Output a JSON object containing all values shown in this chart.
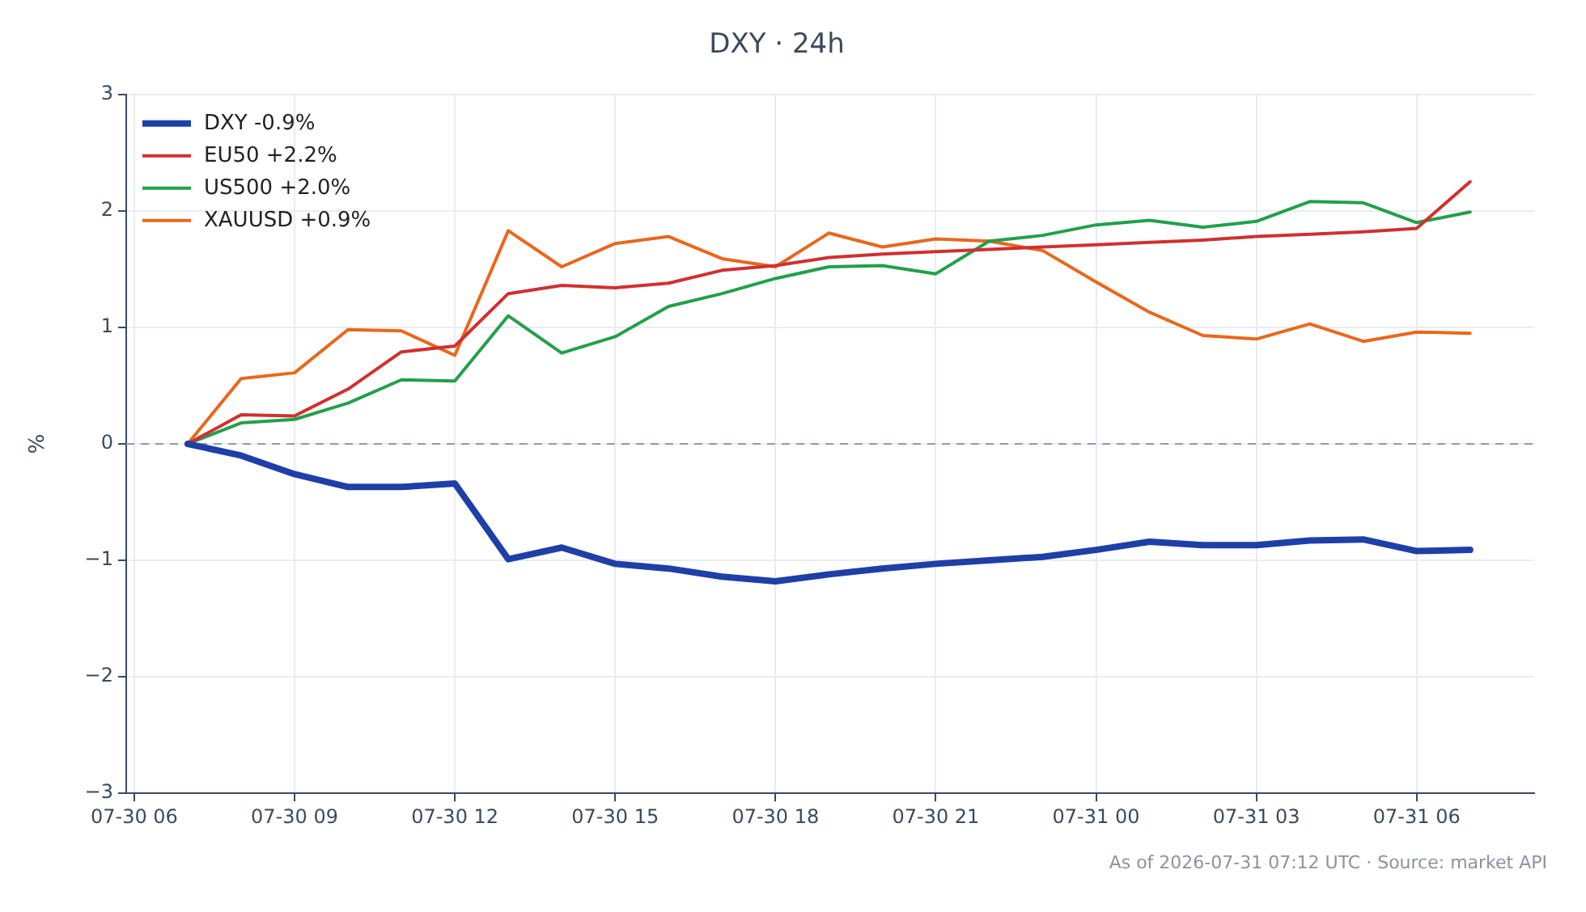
{
  "chart_data": {
    "type": "line",
    "title": "DXY · 24h",
    "ylabel": "%",
    "x": [
      "2026-07-30T07:00",
      "2026-07-30T08:00",
      "2026-07-30T09:00",
      "2026-07-30T10:00",
      "2026-07-30T11:00",
      "2026-07-30T12:00",
      "2026-07-30T13:00",
      "2026-07-30T14:00",
      "2026-07-30T15:00",
      "2026-07-30T16:00",
      "2026-07-30T17:00",
      "2026-07-30T18:00",
      "2026-07-30T19:00",
      "2026-07-30T20:00",
      "2026-07-30T21:00",
      "2026-07-30T22:00",
      "2026-07-30T23:00",
      "2026-07-31T00:00",
      "2026-07-31T01:00",
      "2026-07-31T02:00",
      "2026-07-31T03:00",
      "2026-07-31T04:00",
      "2026-07-31T05:00",
      "2026-07-31T06:00",
      "2026-07-31T07:00"
    ],
    "xlim": [
      "2026-07-30T05:51",
      "2026-07-31T08:12"
    ],
    "xticks": [
      {
        "value": "2026-07-30T06:00",
        "label": "07-30 06"
      },
      {
        "value": "2026-07-30T09:00",
        "label": "07-30 09"
      },
      {
        "value": "2026-07-30T12:00",
        "label": "07-30 12"
      },
      {
        "value": "2026-07-30T15:00",
        "label": "07-30 15"
      },
      {
        "value": "2026-07-30T18:00",
        "label": "07-30 18"
      },
      {
        "value": "2026-07-30T21:00",
        "label": "07-30 21"
      },
      {
        "value": "2026-07-31T00:00",
        "label": "07-31 00"
      },
      {
        "value": "2026-07-31T03:00",
        "label": "07-31 03"
      },
      {
        "value": "2026-07-31T06:00",
        "label": "07-31 06"
      }
    ],
    "ylim": [
      -3,
      3
    ],
    "yticks": [
      {
        "value": -3,
        "label": "−3"
      },
      {
        "value": -2,
        "label": "−2"
      },
      {
        "value": -1,
        "label": "−1"
      },
      0,
      1,
      2,
      3
    ],
    "series": [
      {
        "name": "DXY -0.9%",
        "color": "#1f3fa8",
        "values": [
          0,
          -0.1,
          -0.26,
          -0.37,
          -0.37,
          -0.34,
          -0.99,
          -0.89,
          -1.03,
          -1.07,
          -1.14,
          -1.18,
          -1.12,
          -1.07,
          -1.03,
          -1.0,
          -0.97,
          -0.91,
          -0.84,
          -0.87,
          -0.87,
          -0.83,
          -0.82,
          -0.92,
          -0.91
        ]
      },
      {
        "name": "EU50 +2.2%",
        "color": "#d03030",
        "values": [
          0,
          0.25,
          0.24,
          0.47,
          0.79,
          0.84,
          1.29,
          1.36,
          1.34,
          1.38,
          1.49,
          1.53,
          1.6,
          1.63,
          1.65,
          1.67,
          1.69,
          1.71,
          1.73,
          1.75,
          1.78,
          1.8,
          1.82,
          1.85,
          2.25
        ]
      },
      {
        "name": "US500 +2.0%",
        "color": "#22a04a",
        "values": [
          0,
          0.18,
          0.21,
          0.35,
          0.55,
          0.54,
          1.1,
          0.78,
          0.92,
          1.18,
          1.29,
          1.42,
          1.52,
          1.53,
          1.46,
          1.74,
          1.79,
          1.88,
          1.92,
          1.86,
          1.91,
          2.08,
          2.07,
          1.9,
          1.99
        ]
      },
      {
        "name": "XAUUSD +0.9%",
        "color": "#e8681c",
        "values": [
          0,
          0.56,
          0.61,
          0.98,
          0.97,
          0.76,
          1.83,
          1.52,
          1.72,
          1.78,
          1.59,
          1.52,
          1.81,
          1.69,
          1.76,
          1.74,
          1.66,
          1.39,
          1.13,
          0.93,
          0.9,
          1.03,
          0.88,
          0.96,
          0.95
        ]
      }
    ],
    "ref_lines": [
      {
        "axis": "y",
        "value": 0,
        "color": "#8a9bb8",
        "line_style": "dashed"
      }
    ],
    "grid": true,
    "legend": "top left",
    "marker": "none",
    "line_style": "solid",
    "annotations": [
      "As of 2026-07-31 07:12 UTC · Source: market API"
    ]
  }
}
